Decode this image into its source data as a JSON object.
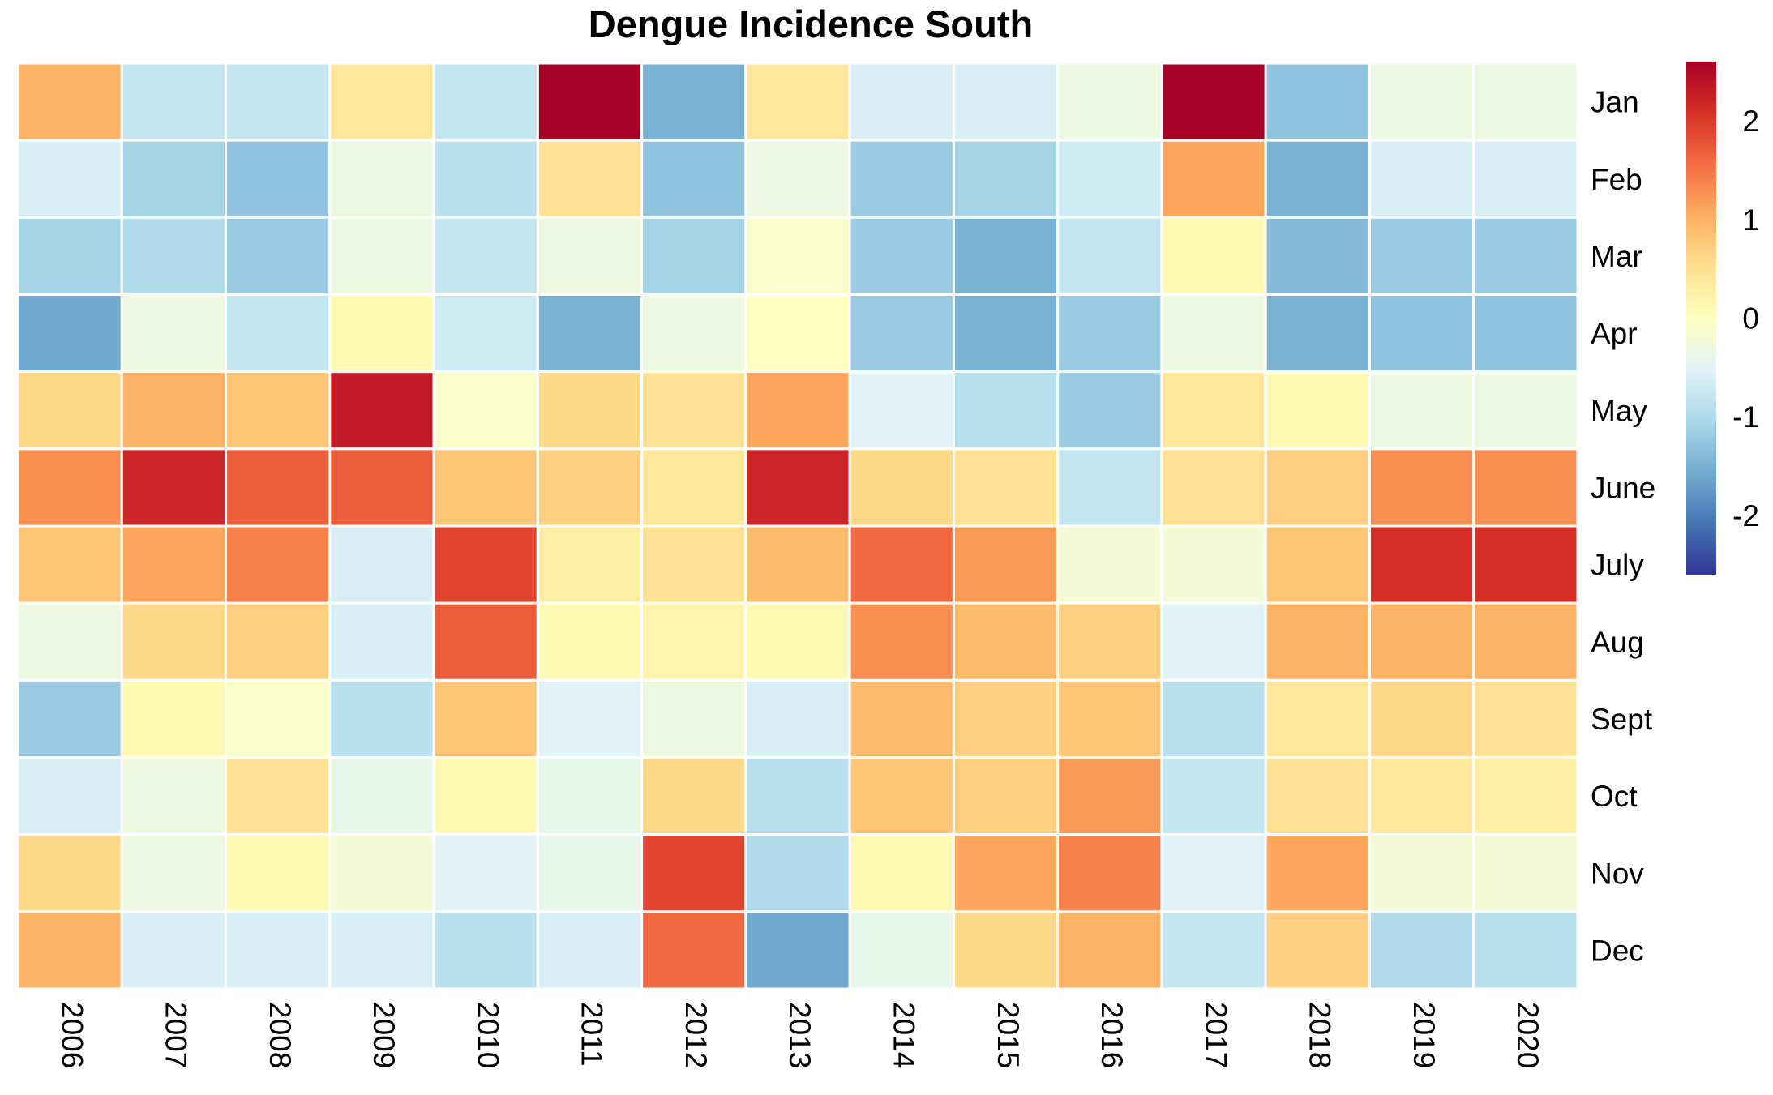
{
  "chart_data": {
    "type": "heatmap",
    "title": "Dengue Incidence South",
    "xlabel": "",
    "ylabel": "",
    "columns": [
      "2006",
      "2007",
      "2008",
      "2009",
      "2010",
      "2011",
      "2012",
      "2013",
      "2014",
      "2015",
      "2016",
      "2017",
      "2018",
      "2019",
      "2020"
    ],
    "rows": [
      "Jan",
      "Feb",
      "Mar",
      "Apr",
      "May",
      "June",
      "July",
      "Aug",
      "Sept",
      "Oct",
      "Nov",
      "Dec"
    ],
    "values": [
      [
        1.0,
        -0.8,
        -0.8,
        0.4,
        -0.8,
        2.6,
        -1.5,
        0.4,
        -0.6,
        -0.6,
        -0.3,
        2.6,
        -1.3,
        -0.3,
        -0.3
      ],
      [
        -0.6,
        -1.1,
        -1.3,
        -0.3,
        -0.9,
        0.5,
        -1.3,
        -0.3,
        -1.2,
        -1.1,
        -0.7,
        1.1,
        -1.5,
        -0.6,
        -0.6
      ],
      [
        -1.1,
        -1.0,
        -1.2,
        -0.3,
        -0.8,
        -0.3,
        -1.1,
        -0.1,
        -1.2,
        -1.5,
        -0.8,
        0.1,
        -1.4,
        -1.2,
        -1.2
      ],
      [
        -1.6,
        -0.3,
        -0.8,
        0.1,
        -0.7,
        -1.5,
        -0.3,
        0.0,
        -1.2,
        -1.5,
        -1.2,
        -0.3,
        -1.5,
        -1.3,
        -1.3
      ],
      [
        0.6,
        1.0,
        0.8,
        2.3,
        -0.1,
        0.6,
        0.5,
        1.1,
        -0.5,
        -0.9,
        -1.2,
        0.4,
        0.1,
        -0.3,
        -0.3
      ],
      [
        1.3,
        2.2,
        1.7,
        1.7,
        0.8,
        0.7,
        0.4,
        2.2,
        0.6,
        0.5,
        -0.8,
        0.5,
        0.7,
        1.3,
        1.3
      ],
      [
        0.8,
        1.1,
        1.4,
        -0.6,
        1.9,
        0.3,
        0.5,
        0.9,
        1.6,
        1.2,
        -0.2,
        -0.2,
        0.8,
        2.1,
        2.1
      ],
      [
        -0.3,
        0.6,
        0.7,
        -0.6,
        1.7,
        0.1,
        0.2,
        0.1,
        1.3,
        0.9,
        0.7,
        -0.5,
        1.0,
        1.0,
        1.0
      ],
      [
        -1.2,
        0.1,
        -0.1,
        -0.9,
        0.8,
        -0.5,
        -0.3,
        -0.6,
        0.9,
        0.7,
        0.8,
        -0.9,
        0.4,
        0.6,
        0.5
      ],
      [
        -0.6,
        -0.3,
        0.5,
        -0.4,
        0.1,
        -0.4,
        0.6,
        -0.9,
        0.8,
        0.7,
        1.2,
        -0.8,
        0.5,
        0.4,
        0.3
      ],
      [
        0.6,
        -0.3,
        0.1,
        -0.2,
        -0.5,
        -0.4,
        1.9,
        -1.0,
        0.1,
        1.1,
        1.4,
        -0.5,
        1.1,
        -0.2,
        -0.2
      ],
      [
        1.0,
        -0.6,
        -0.6,
        -0.6,
        -0.9,
        -0.6,
        1.6,
        -1.6,
        -0.4,
        0.6,
        1.0,
        -0.8,
        0.7,
        -1.0,
        -0.9
      ]
    ],
    "colorbar": {
      "ticks": [
        2,
        1,
        0,
        -1,
        -2
      ],
      "tick_labels": [
        "2",
        "1",
        "0",
        "-1",
        "-2"
      ],
      "range": [
        -2.6,
        2.6
      ],
      "palette": [
        "#313695",
        "#4575b4",
        "#74add1",
        "#abd9e9",
        "#e0f3f8",
        "#ffffbf",
        "#fee090",
        "#fdae61",
        "#f46d43",
        "#d73027",
        "#a50026"
      ]
    },
    "grid": false,
    "legend": "right"
  }
}
